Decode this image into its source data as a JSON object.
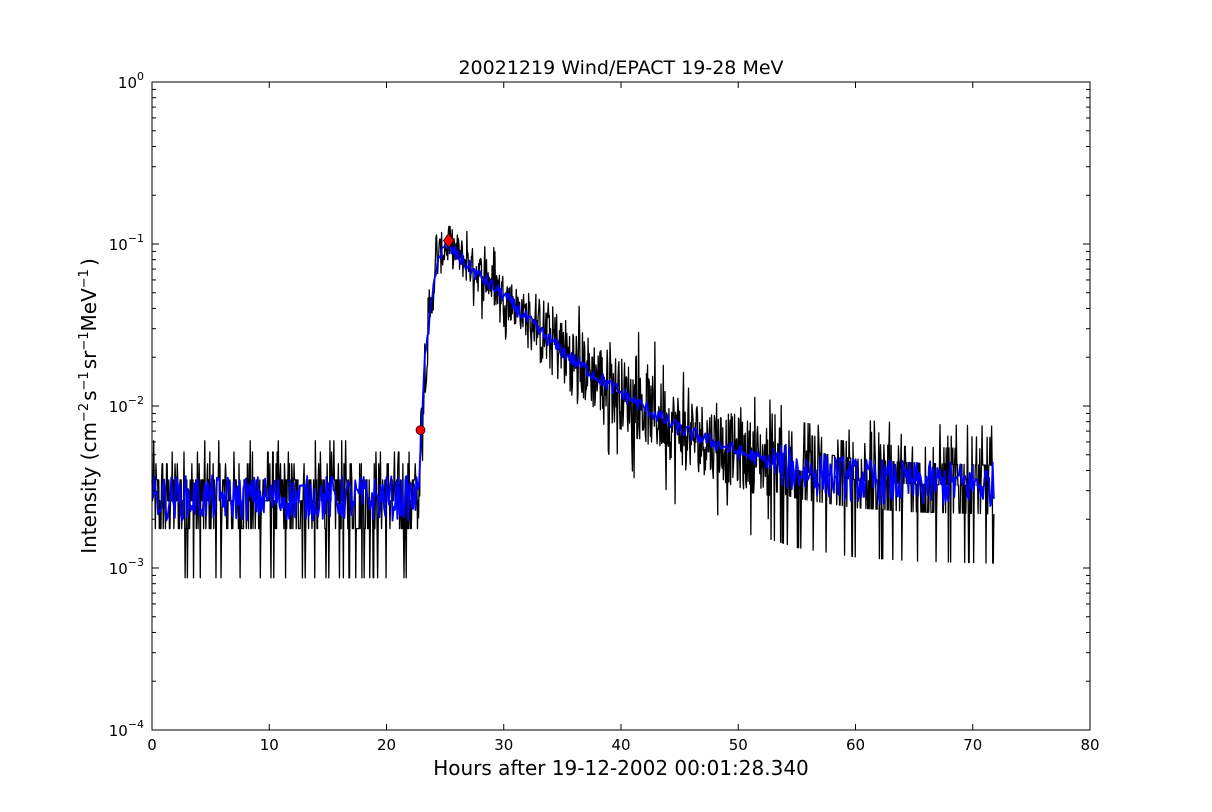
{
  "chart_data": {
    "type": "line",
    "title": "20021219 Wind/EPACT 19-28 MeV",
    "xlabel": "Hours after 19-12-2002 00:01:28.340",
    "ylabel": {
      "prefix": "Intensity (cm",
      "sup1": "−2",
      "mid1": "s",
      "sup2": "−1",
      "mid2": "sr",
      "sup3": "−1",
      "mid3": "MeV",
      "sup4": "−1",
      "suffix": ")"
    },
    "xlim": [
      0,
      80
    ],
    "ylim": [
      0.0001,
      1
    ],
    "yscale": "log",
    "grid": false,
    "xticks": [
      0,
      10,
      20,
      30,
      40,
      50,
      60,
      70,
      80
    ],
    "yticks": [
      {
        "value": 0.0001,
        "base": "10",
        "exp": "−4"
      },
      {
        "value": 0.001,
        "base": "10",
        "exp": "−3"
      },
      {
        "value": 0.01,
        "base": "10",
        "exp": "−2"
      },
      {
        "value": 0.1,
        "base": "10",
        "exp": "−1"
      },
      {
        "value": 1,
        "base": "10",
        "exp": "0"
      }
    ],
    "series": [
      {
        "style": "raw",
        "color": "#000000",
        "baseline_level": 0.0026,
        "level_set": [
          0.00087,
          0.00175,
          0.0026,
          0.0035,
          0.0044,
          0.0052,
          0.0061
        ],
        "profile": [
          {
            "x": 0.0,
            "y": 0.0026
          },
          {
            "x": 22.7,
            "y": 0.0026
          },
          {
            "x": 22.9,
            "y": 0.006
          },
          {
            "x": 23.3,
            "y": 0.02
          },
          {
            "x": 23.8,
            "y": 0.04
          },
          {
            "x": 24.3,
            "y": 0.08
          },
          {
            "x": 25.2,
            "y": 0.1
          },
          {
            "x": 27.0,
            "y": 0.075
          },
          {
            "x": 30.0,
            "y": 0.05
          },
          {
            "x": 33.0,
            "y": 0.03
          },
          {
            "x": 36.0,
            "y": 0.019
          },
          {
            "x": 40.0,
            "y": 0.012
          },
          {
            "x": 45.0,
            "y": 0.0072
          },
          {
            "x": 50.0,
            "y": 0.0052
          },
          {
            "x": 55.0,
            "y": 0.004
          },
          {
            "x": 60.0,
            "y": 0.0035
          },
          {
            "x": 65.0,
            "y": 0.0033
          },
          {
            "x": 71.8,
            "y": 0.0032
          }
        ],
        "x_end": 71.8
      },
      {
        "style": "smoothed",
        "color": "#0000ff",
        "profile": [
          {
            "x": 0.0,
            "y": 0.0027
          },
          {
            "x": 22.7,
            "y": 0.0027
          },
          {
            "x": 22.9,
            "y": 0.006
          },
          {
            "x": 23.3,
            "y": 0.02
          },
          {
            "x": 23.8,
            "y": 0.04
          },
          {
            "x": 24.3,
            "y": 0.08
          },
          {
            "x": 25.2,
            "y": 0.098
          },
          {
            "x": 27.0,
            "y": 0.072
          },
          {
            "x": 30.0,
            "y": 0.048
          },
          {
            "x": 33.0,
            "y": 0.029
          },
          {
            "x": 36.0,
            "y": 0.019
          },
          {
            "x": 40.0,
            "y": 0.012
          },
          {
            "x": 45.0,
            "y": 0.0072
          },
          {
            "x": 50.0,
            "y": 0.0052
          },
          {
            "x": 55.0,
            "y": 0.004
          },
          {
            "x": 60.0,
            "y": 0.0035
          },
          {
            "x": 65.0,
            "y": 0.0033
          },
          {
            "x": 71.8,
            "y": 0.0033
          }
        ],
        "x_end": 71.8
      }
    ],
    "markers": [
      {
        "name": "onset",
        "shape": "circle",
        "x": 22.9,
        "y": 0.0071,
        "color": "#ff0000"
      },
      {
        "name": "peak",
        "shape": "diamond",
        "x": 25.3,
        "y": 0.105,
        "color": "#ff0000"
      }
    ]
  }
}
